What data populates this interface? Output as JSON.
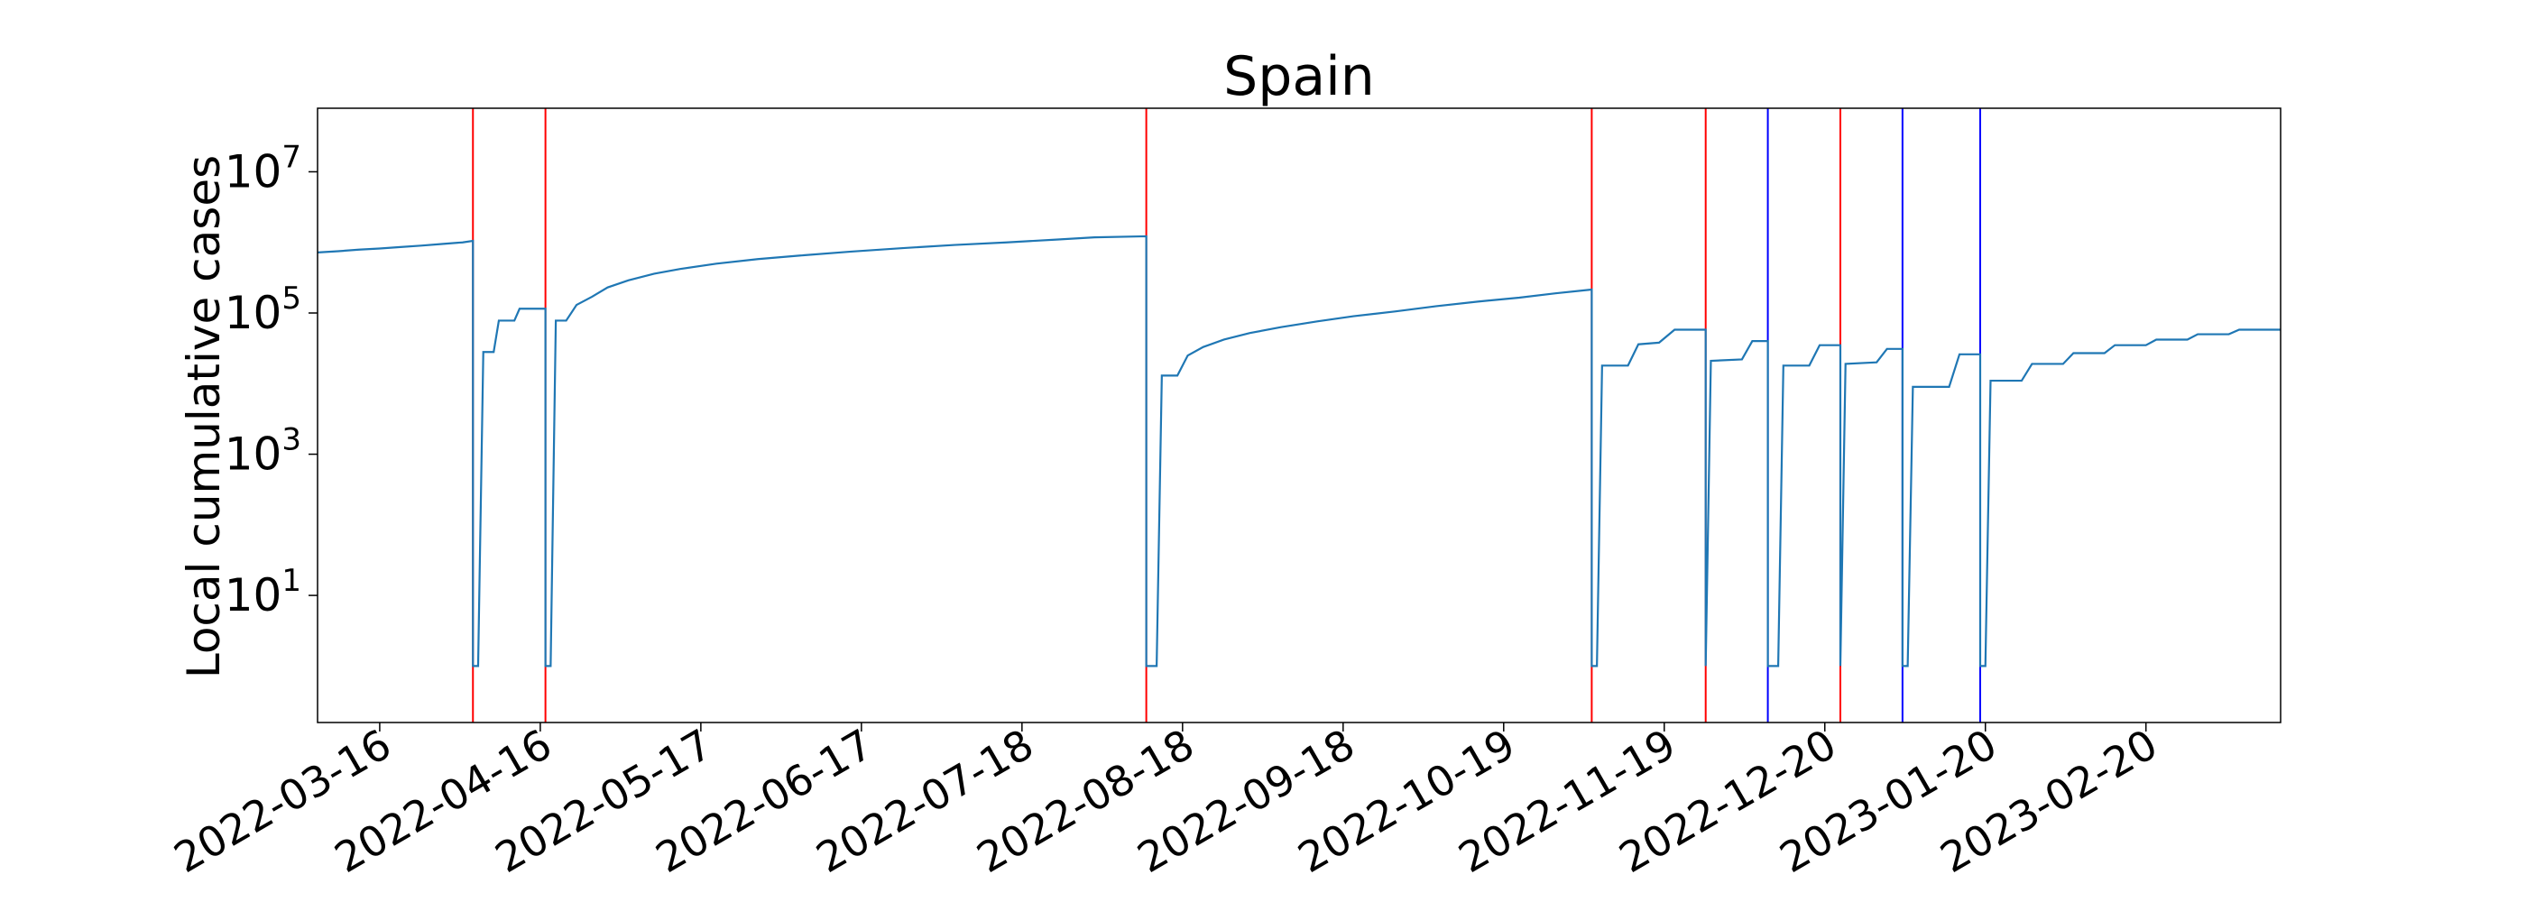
{
  "chart_data": {
    "type": "line",
    "title": "Spain",
    "xlabel": "",
    "ylabel": "Local cumulative cases",
    "y_scale": "log",
    "xlim": [
      "2022-03-04",
      "2023-03-18"
    ],
    "ylim_exponent": [
      -0.8,
      7.9
    ],
    "x_ticks": [
      "2022-03-16",
      "2022-04-16",
      "2022-05-17",
      "2022-06-17",
      "2022-07-18",
      "2022-08-18",
      "2022-09-18",
      "2022-10-19",
      "2022-11-19",
      "2022-12-20",
      "2023-01-20",
      "2023-02-20"
    ],
    "y_ticks": [
      {
        "base": "10",
        "exp": "1",
        "value": 10
      },
      {
        "base": "10",
        "exp": "3",
        "value": 1000
      },
      {
        "base": "10",
        "exp": "5",
        "value": 100000
      },
      {
        "base": "10",
        "exp": "7",
        "value": 10000000
      }
    ],
    "vertical_lines": [
      {
        "date": "2022-04-03",
        "color": "#ff0000"
      },
      {
        "date": "2022-04-17",
        "color": "#ff0000"
      },
      {
        "date": "2022-08-11",
        "color": "#ff0000"
      },
      {
        "date": "2022-11-05",
        "color": "#ff0000"
      },
      {
        "date": "2022-11-27",
        "color": "#ff0000"
      },
      {
        "date": "2022-12-09",
        "color": "#0000ff"
      },
      {
        "date": "2022-12-23",
        "color": "#ff0000"
      },
      {
        "date": "2023-01-04",
        "color": "#0000ff"
      },
      {
        "date": "2023-01-19",
        "color": "#0000ff"
      }
    ],
    "series": [
      {
        "color": "#1f77b4",
        "points": [
          [
            "2022-03-04",
            720000
          ],
          [
            "2022-03-08",
            750000
          ],
          [
            "2022-03-12",
            790000
          ],
          [
            "2022-03-16",
            820000
          ],
          [
            "2022-03-20",
            860000
          ],
          [
            "2022-03-24",
            900000
          ],
          [
            "2022-03-28",
            950000
          ],
          [
            "2022-04-01",
            1000000
          ],
          [
            "2022-04-03",
            1050000
          ],
          [
            "2022-04-03",
            1
          ],
          [
            "2022-04-04",
            1
          ],
          [
            "2022-04-05",
            28000
          ],
          [
            "2022-04-07",
            28000
          ],
          [
            "2022-04-08",
            78000
          ],
          [
            "2022-04-11",
            78000
          ],
          [
            "2022-04-12",
            115000
          ],
          [
            "2022-04-17",
            115000
          ],
          [
            "2022-04-17",
            1
          ],
          [
            "2022-04-18",
            1
          ],
          [
            "2022-04-19",
            78000
          ],
          [
            "2022-04-21",
            78000
          ],
          [
            "2022-04-23",
            130000
          ],
          [
            "2022-04-26",
            170000
          ],
          [
            "2022-04-29",
            230000
          ],
          [
            "2022-05-03",
            290000
          ],
          [
            "2022-05-08",
            360000
          ],
          [
            "2022-05-13",
            420000
          ],
          [
            "2022-05-20",
            500000
          ],
          [
            "2022-05-28",
            580000
          ],
          [
            "2022-06-05",
            650000
          ],
          [
            "2022-06-15",
            740000
          ],
          [
            "2022-06-25",
            830000
          ],
          [
            "2022-07-05",
            920000
          ],
          [
            "2022-07-15",
            1000000
          ],
          [
            "2022-07-25",
            1100000
          ],
          [
            "2022-08-01",
            1180000
          ],
          [
            "2022-08-11",
            1220000
          ],
          [
            "2022-08-11",
            1
          ],
          [
            "2022-08-13",
            1
          ],
          [
            "2022-08-14",
            13000
          ],
          [
            "2022-08-17",
            13000
          ],
          [
            "2022-08-19",
            25000
          ],
          [
            "2022-08-22",
            33000
          ],
          [
            "2022-08-26",
            42000
          ],
          [
            "2022-08-31",
            52000
          ],
          [
            "2022-09-06",
            63000
          ],
          [
            "2022-09-13",
            76000
          ],
          [
            "2022-09-20",
            90000
          ],
          [
            "2022-09-28",
            105000
          ],
          [
            "2022-10-06",
            125000
          ],
          [
            "2022-10-14",
            145000
          ],
          [
            "2022-10-22",
            165000
          ],
          [
            "2022-10-29",
            190000
          ],
          [
            "2022-11-05",
            215000
          ],
          [
            "2022-11-05",
            1
          ],
          [
            "2022-11-06",
            1
          ],
          [
            "2022-11-07",
            18000
          ],
          [
            "2022-11-12",
            18000
          ],
          [
            "2022-11-14",
            36000
          ],
          [
            "2022-11-18",
            38000
          ],
          [
            "2022-11-21",
            58000
          ],
          [
            "2022-11-27",
            58000
          ],
          [
            "2022-11-27",
            1
          ],
          [
            "2022-11-28",
            21000
          ],
          [
            "2022-12-04",
            22000
          ],
          [
            "2022-12-06",
            40000
          ],
          [
            "2022-12-09",
            40000
          ],
          [
            "2022-12-09",
            1
          ],
          [
            "2022-12-11",
            1
          ],
          [
            "2022-12-12",
            18000
          ],
          [
            "2022-12-17",
            18000
          ],
          [
            "2022-12-19",
            35000
          ],
          [
            "2022-12-23",
            35000
          ],
          [
            "2022-12-23",
            1
          ],
          [
            "2022-12-24",
            19000
          ],
          [
            "2022-12-30",
            20000
          ],
          [
            "2023-01-01",
            31000
          ],
          [
            "2023-01-04",
            31000
          ],
          [
            "2023-01-04",
            1
          ],
          [
            "2023-01-05",
            1
          ],
          [
            "2023-01-06",
            9000
          ],
          [
            "2023-01-13",
            9000
          ],
          [
            "2023-01-15",
            26000
          ],
          [
            "2023-01-19",
            26000
          ],
          [
            "2023-01-19",
            1
          ],
          [
            "2023-01-20",
            1
          ],
          [
            "2023-01-21",
            11000
          ],
          [
            "2023-01-27",
            11000
          ],
          [
            "2023-01-29",
            19000
          ],
          [
            "2023-02-04",
            19000
          ],
          [
            "2023-02-06",
            27000
          ],
          [
            "2023-02-12",
            27000
          ],
          [
            "2023-02-14",
            35000
          ],
          [
            "2023-02-20",
            35000
          ],
          [
            "2023-02-22",
            42000
          ],
          [
            "2023-02-28",
            42000
          ],
          [
            "2023-03-02",
            50000
          ],
          [
            "2023-03-08",
            50000
          ],
          [
            "2023-03-10",
            58000
          ],
          [
            "2023-03-18",
            58000
          ]
        ]
      }
    ]
  }
}
